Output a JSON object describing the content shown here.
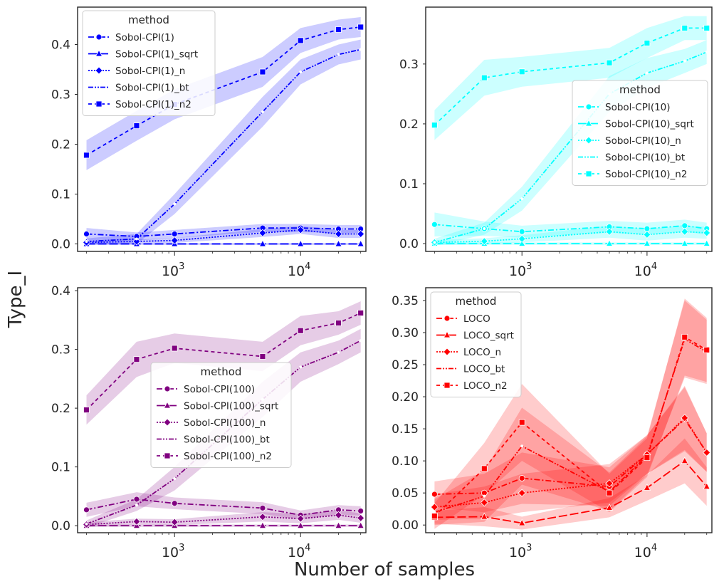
{
  "figure": {
    "ylabel": "Type_I",
    "xlabel": "Number of samples",
    "x_tick_labels": [
      {
        "base": "10",
        "exp": "3",
        "value": 1000
      },
      {
        "base": "10",
        "exp": "4",
        "value": 10000
      }
    ]
  },
  "chart_data": [
    {
      "type": "line",
      "panel": "top-left",
      "x_scale": "log",
      "xlim": [
        170,
        33000
      ],
      "ylim": [
        -0.015,
        0.475
      ],
      "y_ticks": [
        0.0,
        0.1,
        0.2,
        0.3,
        0.4
      ],
      "y_tick_labels": [
        "0.0",
        "0.1",
        "0.2",
        "0.3",
        "0.4"
      ],
      "color": "#0000ff",
      "legend": {
        "title": "method",
        "placement": "top-left"
      },
      "x": [
        200,
        500,
        1000,
        5000,
        10000,
        20000,
        30000
      ],
      "series": [
        {
          "name": "Sobol-CPI(1)",
          "marker": "circle",
          "dash": "8 3 2 3",
          "values": [
            0.02,
            0.015,
            0.02,
            0.032,
            0.032,
            0.03,
            0.03
          ],
          "ci": [
            0.012,
            0.008,
            0.008,
            0.008,
            0.008,
            0.008,
            0.008
          ]
        },
        {
          "name": "Sobol-CPI(1)_sqrt",
          "marker": "triangle",
          "dash": "12 4",
          "values": [
            0.0,
            0.0,
            0.0,
            0.0,
            0.0,
            0.0,
            0.0
          ],
          "ci": [
            0.002,
            0.002,
            0.002,
            0.002,
            0.002,
            0.002,
            0.002
          ]
        },
        {
          "name": "Sobol-CPI(1)_n",
          "marker": "diamond",
          "dash": "2 2",
          "values": [
            0.003,
            0.005,
            0.007,
            0.022,
            0.028,
            0.02,
            0.02
          ],
          "ci": [
            0.004,
            0.004,
            0.005,
            0.008,
            0.008,
            0.008,
            0.008
          ]
        },
        {
          "name": "Sobol-CPI(1)_bt",
          "marker": "none",
          "dash": "7 2 2 2 2 2",
          "values": [
            0.005,
            0.01,
            0.08,
            0.265,
            0.345,
            0.38,
            0.39
          ],
          "ci": [
            0.006,
            0.01,
            0.02,
            0.03,
            0.025,
            0.02,
            0.02
          ]
        },
        {
          "name": "Sobol-CPI(1)_n2",
          "marker": "square",
          "dash": "5 4",
          "values": [
            0.178,
            0.237,
            0.28,
            0.345,
            0.408,
            0.43,
            0.435
          ],
          "ci": [
            0.03,
            0.03,
            0.03,
            0.03,
            0.025,
            0.02,
            0.02
          ]
        }
      ]
    },
    {
      "type": "line",
      "panel": "top-right",
      "x_scale": "log",
      "xlim": [
        170,
        33000
      ],
      "ylim": [
        -0.013,
        0.395
      ],
      "y_ticks": [
        0.0,
        0.1,
        0.2,
        0.3
      ],
      "y_tick_labels": [
        "0.0",
        "0.1",
        "0.2",
        "0.3"
      ],
      "color": "#00ffff",
      "legend": {
        "title": "method",
        "placement": "center-right"
      },
      "x": [
        200,
        500,
        1000,
        5000,
        10000,
        20000,
        30000
      ],
      "series": [
        {
          "name": "Sobol-CPI(10)",
          "marker": "circle",
          "dash": "8 3 2 3",
          "values": [
            0.032,
            0.025,
            0.02,
            0.028,
            0.025,
            0.03,
            0.025
          ],
          "ci": [
            0.02,
            0.012,
            0.01,
            0.01,
            0.01,
            0.01,
            0.01
          ]
        },
        {
          "name": "Sobol-CPI(10)_sqrt",
          "marker": "triangle",
          "dash": "12 4",
          "values": [
            0.0,
            0.0,
            0.0,
            0.0,
            0.0,
            0.0,
            0.0
          ],
          "ci": [
            0.002,
            0.002,
            0.002,
            0.002,
            0.002,
            0.002,
            0.002
          ]
        },
        {
          "name": "Sobol-CPI(10)_n",
          "marker": "diamond",
          "dash": "2 2",
          "values": [
            0.002,
            0.004,
            0.008,
            0.02,
            0.015,
            0.02,
            0.018
          ],
          "ci": [
            0.004,
            0.005,
            0.006,
            0.01,
            0.01,
            0.01,
            0.01
          ]
        },
        {
          "name": "Sobol-CPI(10)_bt",
          "marker": "none",
          "dash": "7 2 2 2 2 2",
          "values": [
            0.002,
            0.025,
            0.075,
            0.25,
            0.285,
            0.305,
            0.32
          ],
          "ci": [
            0.006,
            0.01,
            0.02,
            0.03,
            0.025,
            0.02,
            0.02
          ]
        },
        {
          "name": "Sobol-CPI(10)_n2",
          "marker": "square",
          "dash": "5 4",
          "values": [
            0.198,
            0.277,
            0.287,
            0.302,
            0.335,
            0.36,
            0.36
          ],
          "ci": [
            0.025,
            0.03,
            0.025,
            0.025,
            0.025,
            0.02,
            0.02
          ]
        }
      ]
    },
    {
      "type": "line",
      "panel": "bottom-left",
      "x_scale": "log",
      "xlim": [
        170,
        33000
      ],
      "ylim": [
        -0.012,
        0.405
      ],
      "y_ticks": [
        0.0,
        0.1,
        0.2,
        0.3,
        0.4
      ],
      "y_tick_labels": [
        "0.0",
        "0.1",
        "0.2",
        "0.3",
        "0.4"
      ],
      "color": "#800080",
      "legend": {
        "title": "method",
        "placement": "center"
      },
      "x": [
        200,
        500,
        1000,
        5000,
        10000,
        20000,
        30000
      ],
      "series": [
        {
          "name": "Sobol-CPI(100)",
          "marker": "circle",
          "dash": "8 3 2 3",
          "values": [
            0.027,
            0.045,
            0.038,
            0.03,
            0.018,
            0.027,
            0.025
          ],
          "ci": [
            0.012,
            0.012,
            0.01,
            0.01,
            0.008,
            0.008,
            0.008
          ]
        },
        {
          "name": "Sobol-CPI(100)_sqrt",
          "marker": "triangle",
          "dash": "12 4",
          "values": [
            0.0,
            0.0,
            0.0,
            0.0,
            0.0,
            0.0,
            0.0
          ],
          "ci": [
            0.002,
            0.002,
            0.002,
            0.002,
            0.002,
            0.002,
            0.002
          ]
        },
        {
          "name": "Sobol-CPI(100)_n",
          "marker": "diamond",
          "dash": "2 2",
          "values": [
            0.002,
            0.007,
            0.006,
            0.015,
            0.012,
            0.018,
            0.013
          ],
          "ci": [
            0.004,
            0.005,
            0.005,
            0.008,
            0.008,
            0.008,
            0.008
          ]
        },
        {
          "name": "Sobol-CPI(100)_bt",
          "marker": "none",
          "dash": "7 2 2 2 2 2",
          "values": [
            0.003,
            0.035,
            0.08,
            0.215,
            0.27,
            0.295,
            0.315
          ],
          "ci": [
            0.006,
            0.01,
            0.02,
            0.03,
            0.025,
            0.02,
            0.02
          ]
        },
        {
          "name": "Sobol-CPI(100)_n2",
          "marker": "square",
          "dash": "5 4",
          "values": [
            0.197,
            0.283,
            0.302,
            0.288,
            0.332,
            0.345,
            0.362
          ],
          "ci": [
            0.025,
            0.03,
            0.025,
            0.025,
            0.025,
            0.02,
            0.02
          ]
        }
      ]
    },
    {
      "type": "line",
      "panel": "bottom-right",
      "x_scale": "log",
      "xlim": [
        170,
        33000
      ],
      "ylim": [
        -0.012,
        0.37
      ],
      "y_ticks": [
        0.0,
        0.05,
        0.1,
        0.15,
        0.2,
        0.25,
        0.3,
        0.35
      ],
      "y_tick_labels": [
        "0.00",
        "0.05",
        "0.10",
        "0.15",
        "0.20",
        "0.25",
        "0.30",
        "0.35"
      ],
      "color": "#ff0000",
      "legend": {
        "title": "method",
        "placement": "top-left"
      },
      "x": [
        200,
        500,
        1000,
        5000,
        10000,
        20000,
        30000
      ],
      "series": [
        {
          "name": "LOCO",
          "marker": "circle",
          "dash": "8 3 2 3",
          "values": [
            0.048,
            0.05,
            0.073,
            0.06,
            0.11,
            0.165,
            0.113
          ],
          "ci": [
            0.02,
            0.03,
            0.04,
            0.03,
            0.03,
            0.05,
            0.03
          ]
        },
        {
          "name": "LOCO_sqrt",
          "marker": "triangle",
          "dash": "12 4",
          "values": [
            0.012,
            0.013,
            0.003,
            0.027,
            0.058,
            0.1,
            0.06
          ],
          "ci": [
            0.01,
            0.015,
            0.01,
            0.015,
            0.02,
            0.035,
            0.03
          ]
        },
        {
          "name": "LOCO_n",
          "marker": "diamond",
          "dash": "2 2",
          "values": [
            0.028,
            0.035,
            0.05,
            0.065,
            0.11,
            0.167,
            0.113
          ],
          "ci": [
            0.02,
            0.025,
            0.03,
            0.03,
            0.03,
            0.05,
            0.03
          ]
        },
        {
          "name": "LOCO_bt",
          "marker": "none",
          "dash": "7 2 2 2 2 2",
          "values": [
            0.02,
            0.045,
            0.123,
            0.052,
            0.108,
            0.29,
            0.27
          ],
          "ci": [
            0.02,
            0.04,
            0.06,
            0.03,
            0.03,
            0.06,
            0.05
          ]
        },
        {
          "name": "LOCO_n2",
          "marker": "square",
          "dash": "5 4",
          "values": [
            0.014,
            0.088,
            0.16,
            0.05,
            0.105,
            0.293,
            0.273
          ],
          "ci": [
            0.02,
            0.04,
            0.06,
            0.03,
            0.03,
            0.06,
            0.05
          ]
        }
      ]
    }
  ]
}
